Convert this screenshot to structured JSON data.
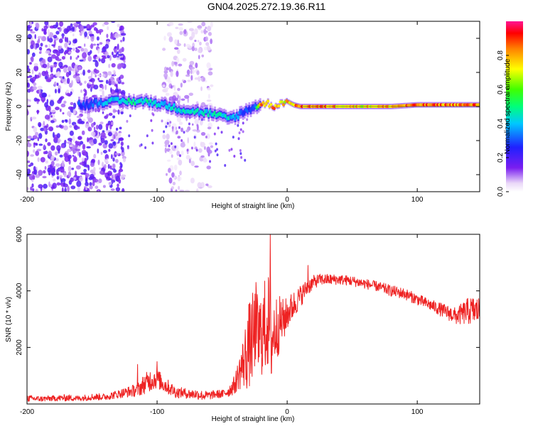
{
  "figure_title": "GN04.2025.272.19.36.R11",
  "chart_data": [
    {
      "type": "heatmap",
      "xlabel": "Height of straight line (km)",
      "ylabel": "Frequency (Hz)",
      "xlim": [
        -200,
        148
      ],
      "ylim": [
        -50,
        50
      ],
      "xticks": [
        -200,
        -100,
        0,
        100
      ],
      "xtick_labels": [
        "-200",
        "-100",
        "0",
        "100"
      ],
      "yticks": [
        -40,
        -20,
        0,
        20,
        40
      ],
      "ytick_labels": [
        "-40",
        "-20",
        "0",
        "20",
        "40"
      ],
      "colorbar": {
        "label": "Normalized spectral amplitude",
        "range": [
          0,
          1
        ],
        "ticks": [
          0,
          0.2,
          0.4,
          0.6,
          0.8
        ],
        "tick_labels": [
          "0.0",
          "0.2",
          "0.4",
          "0.6",
          "0.8"
        ]
      },
      "ridge_track": {
        "x": [
          -155,
          -140,
          -125,
          -110,
          -100,
          -90,
          -80,
          -70,
          -60,
          -50,
          -45,
          -40,
          -35,
          -30,
          -25,
          -20,
          -15,
          -10,
          -5,
          0,
          5,
          10,
          20,
          40,
          60,
          80,
          100,
          120,
          148
        ],
        "y": [
          1,
          3,
          3,
          3,
          2,
          0,
          -2,
          -3,
          -4,
          -6,
          -7,
          -6,
          -4,
          -2,
          0,
          1,
          2,
          0,
          2,
          3,
          1,
          0,
          0,
          0,
          0,
          0,
          1,
          1,
          1
        ],
        "peak_amplitude": [
          0.3,
          0.4,
          0.5,
          0.5,
          0.45,
          0.45,
          0.45,
          0.45,
          0.45,
          0.5,
          0.45,
          0.4,
          0.35,
          0.3,
          0.3,
          0.85,
          0.8,
          0.85,
          0.8,
          0.8,
          0.85,
          0.9,
          0.9,
          0.85,
          0.8,
          0.85,
          0.9,
          0.9,
          0.9
        ]
      },
      "noise_regions": [
        {
          "x_range": [
            -200,
            -125
          ],
          "y_range": [
            -50,
            50
          ],
          "amplitude": 0.15
        },
        {
          "x_range": [
            -95,
            -58
          ],
          "y_range": [
            -50,
            50
          ],
          "amplitude": 0.08
        }
      ]
    },
    {
      "type": "line",
      "xlabel": "Height of straight line (km)",
      "ylabel": "SNR (10 * v/v)",
      "xlim": [
        -200,
        148
      ],
      "ylim": [
        0,
        6000
      ],
      "xticks": [
        -200,
        -100,
        0,
        100
      ],
      "xtick_labels": [
        "-200",
        "-100",
        "0",
        "100"
      ],
      "yticks": [
        2000,
        4000,
        6000
      ],
      "ytick_labels": [
        "2000",
        "4000",
        "6000"
      ],
      "series": [
        {
          "name": "SNR",
          "color": "#ee2222",
          "x": [
            -200,
            -190,
            -180,
            -170,
            -160,
            -150,
            -140,
            -130,
            -120,
            -115,
            -110,
            -105,
            -100,
            -95,
            -90,
            -85,
            -80,
            -75,
            -70,
            -65,
            -60,
            -55,
            -50,
            -45,
            -40,
            -38,
            -35,
            -32,
            -30,
            -28,
            -25,
            -22,
            -20,
            -18,
            -15,
            -12,
            -10,
            -8,
            -5,
            -2,
            0,
            5,
            10,
            15,
            20,
            25,
            30,
            40,
            50,
            60,
            70,
            80,
            90,
            100,
            110,
            120,
            130,
            140,
            148
          ],
          "y": [
            200,
            180,
            200,
            220,
            200,
            250,
            250,
            350,
            450,
            500,
            700,
            850,
            900,
            700,
            550,
            400,
            400,
            350,
            350,
            300,
            300,
            350,
            350,
            450,
            700,
            1000,
            1300,
            1700,
            2000,
            2200,
            2400,
            2300,
            2500,
            2600,
            3000,
            2200,
            2600,
            2700,
            2900,
            3000,
            3200,
            3500,
            3800,
            4100,
            4300,
            4400,
            4400,
            4400,
            4350,
            4250,
            4150,
            4000,
            3900,
            3700,
            3500,
            3300,
            3100,
            3300,
            3300
          ],
          "noise_amplitude": [
            120,
            100,
            100,
            120,
            100,
            120,
            120,
            150,
            200,
            250,
            350,
            400,
            350,
            300,
            250,
            200,
            180,
            180,
            180,
            180,
            150,
            150,
            150,
            200,
            350,
            500,
            800,
            1200,
            1600,
            1500,
            1800,
            1600,
            1500,
            1700,
            1800,
            1600,
            1300,
            1200,
            900,
            700,
            600,
            500,
            400,
            300,
            250,
            200,
            200,
            180,
            180,
            180,
            180,
            200,
            200,
            200,
            200,
            250,
            300,
            500,
            500
          ],
          "spikes": [
            {
              "x": -13,
              "y": 6000
            },
            {
              "x": -24,
              "y": 4300
            },
            {
              "x": 16,
              "y": 4900
            },
            {
              "x": -115,
              "y": 1400
            },
            {
              "x": -100,
              "y": 1500
            }
          ]
        }
      ]
    }
  ]
}
